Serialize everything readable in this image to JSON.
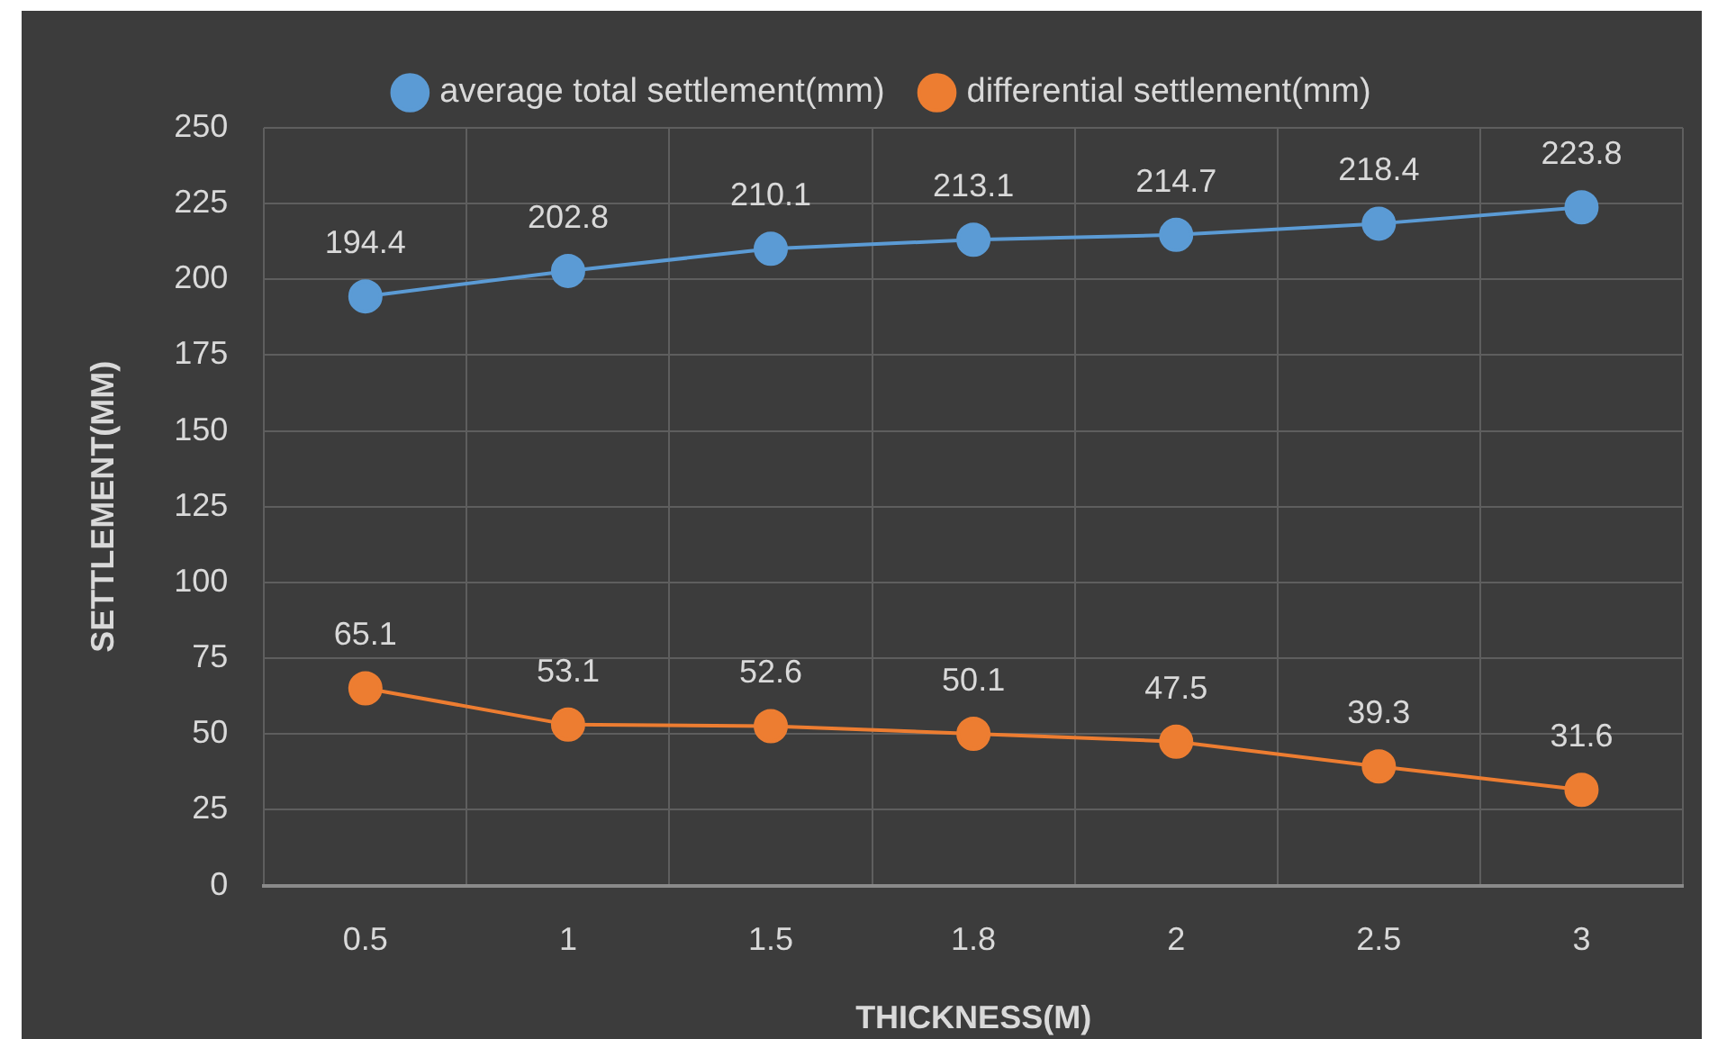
{
  "chart_data": {
    "type": "line",
    "xlabel": "THICKNESS(M)",
    "ylabel": "SETTLEMENT(MM)",
    "categories": [
      "0.5",
      "1",
      "1.5",
      "1.8",
      "2",
      "2.5",
      "3"
    ],
    "series": [
      {
        "name": "average total settlement(mm)",
        "color": "#5b9bd5",
        "values": [
          194.4,
          202.8,
          210.1,
          213.1,
          214.7,
          218.4,
          223.8
        ]
      },
      {
        "name": "differential settlement(mm)",
        "color": "#ed7d31",
        "values": [
          65.1,
          53.1,
          52.6,
          50.1,
          47.5,
          39.3,
          31.6
        ]
      }
    ],
    "ylim": [
      0,
      250
    ],
    "yticks": [
      0,
      25,
      50,
      75,
      100,
      125,
      150,
      175,
      200,
      225,
      250
    ],
    "grid": true,
    "legend": "top",
    "marker": "circle",
    "line_style": "solid",
    "data_labels": true
  }
}
